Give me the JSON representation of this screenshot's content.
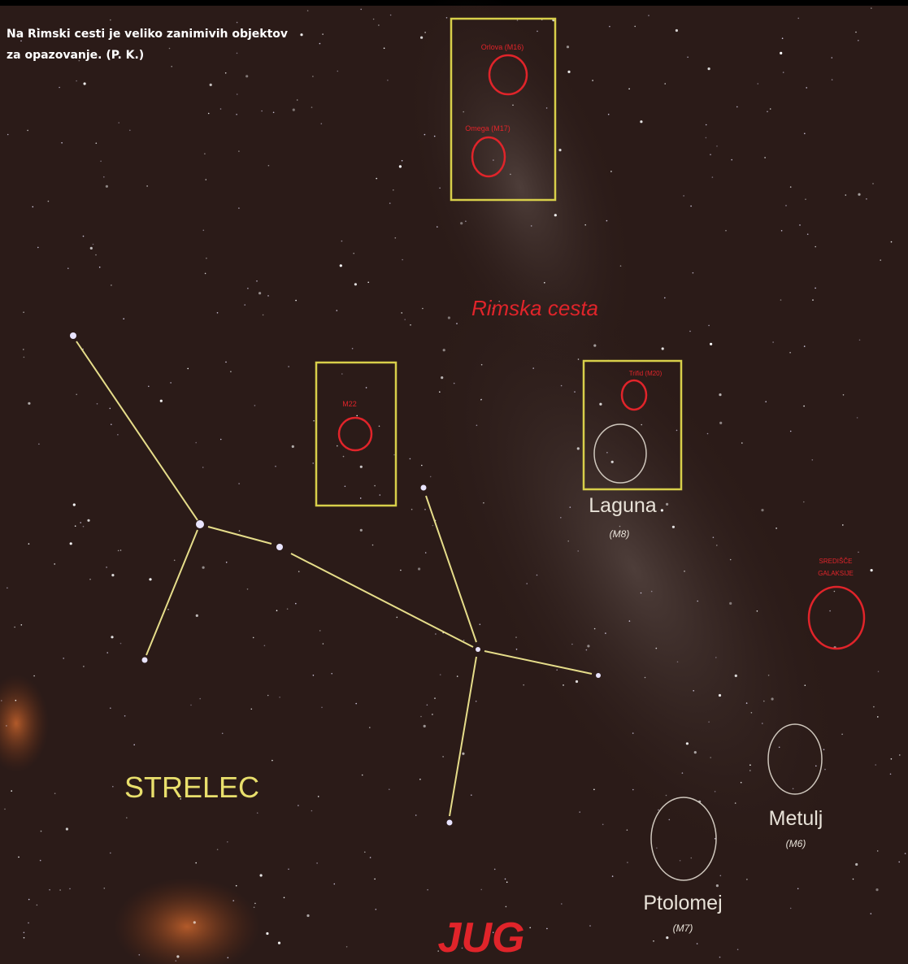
{
  "caption": {
    "lines": [
      "Na Rimski cesti je veliko zanimivih objektov",
      "za opazovanje. (P. K.)"
    ]
  },
  "labels": {
    "m16": "Orlova (M16)",
    "m17": "Omega (M17)",
    "milky_way": "Rimska cesta",
    "m22": "M22",
    "m20": "Trifid (M20)",
    "laguna": "Laguna",
    "laguna_code": "(M8)",
    "galactic_center": [
      "SREDIŠČE",
      "GALAKSIJE"
    ],
    "metulj": "Metulj",
    "metulj_code": "(M6)",
    "ptolomej": "Ptolomej",
    "ptolomej_code": "(M7)",
    "constellation": "STRELEC",
    "direction": "JUG"
  }
}
